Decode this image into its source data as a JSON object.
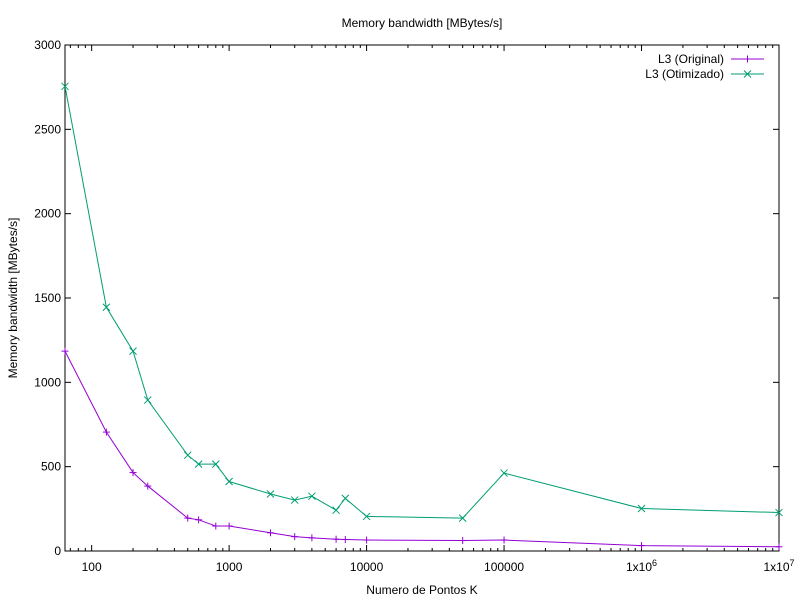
{
  "chart_data": {
    "type": "line",
    "title": "Memory bandwidth [MBytes/s]",
    "xlabel": "Numero de Pontos K",
    "ylabel": "Memory bandwidth [MBytes/s]",
    "xscale": "log",
    "xlim": [
      64,
      10000000
    ],
    "ylim": [
      0,
      3000
    ],
    "grid": false,
    "legend_position": "top-right",
    "y_ticks": [
      0,
      500,
      1000,
      1500,
      2000,
      2500,
      3000
    ],
    "y_tick_labels": [
      "0",
      "500",
      "1000",
      "1500",
      "2000",
      "2500",
      "3000"
    ],
    "x_ticks": [
      100,
      1000,
      10000,
      100000,
      1000000,
      10000000
    ],
    "x_tick_labels": [
      {
        "base": "100",
        "exp": ""
      },
      {
        "base": "1000",
        "exp": ""
      },
      {
        "base": "10000",
        "exp": ""
      },
      {
        "base": "100000",
        "exp": ""
      },
      {
        "base": "1x10",
        "exp": "6"
      },
      {
        "base": "1x10",
        "exp": "7"
      }
    ],
    "series": [
      {
        "name": "L3 (Original)",
        "color": "#9400d3",
        "marker": "plus",
        "points": [
          [
            64,
            1185
          ],
          [
            128,
            705
          ],
          [
            200,
            465
          ],
          [
            256,
            385
          ],
          [
            500,
            195
          ],
          [
            600,
            185
          ],
          [
            800,
            148
          ],
          [
            1000,
            148
          ],
          [
            2000,
            108
          ],
          [
            3000,
            85
          ],
          [
            4000,
            78
          ],
          [
            6000,
            70
          ],
          [
            7000,
            68
          ],
          [
            10000,
            65
          ],
          [
            50000,
            62
          ],
          [
            100000,
            65
          ],
          [
            1000000,
            32
          ],
          [
            10000000,
            25
          ]
        ]
      },
      {
        "name": "L3 (Otimizado)",
        "color": "#009e73",
        "marker": "cross",
        "points": [
          [
            64,
            2755
          ],
          [
            128,
            1445
          ],
          [
            200,
            1185
          ],
          [
            256,
            895
          ],
          [
            500,
            568
          ],
          [
            600,
            515
          ],
          [
            800,
            515
          ],
          [
            1000,
            412
          ],
          [
            2000,
            338
          ],
          [
            3000,
            302
          ],
          [
            4000,
            325
          ],
          [
            6000,
            242
          ],
          [
            7000,
            312
          ],
          [
            10000,
            205
          ],
          [
            50000,
            195
          ],
          [
            100000,
            462
          ],
          [
            1000000,
            252
          ],
          [
            10000000,
            228
          ]
        ]
      }
    ]
  }
}
